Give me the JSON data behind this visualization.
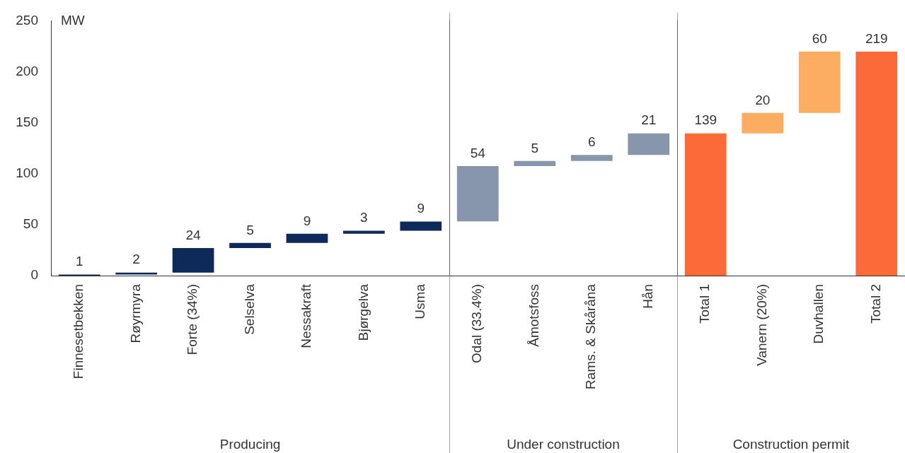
{
  "chart_data": [
    {
      "type": "bar",
      "ylabel": "MW",
      "xlabel": "Producing",
      "categories": [
        "Finnesetbekken",
        "Røyrmyra",
        "Forte (34%)",
        "Selselva",
        "Nessakraft",
        "Bjørgelva",
        "Usma"
      ],
      "values": [
        1,
        2,
        24,
        5,
        9,
        3,
        9
      ],
      "base": [
        0,
        1,
        3,
        27,
        32,
        41,
        44
      ],
      "colors": [
        "#0e2a5a",
        "#0e2a5a",
        "#0e2a5a",
        "#0e2a5a",
        "#0e2a5a",
        "#0e2a5a",
        "#0e2a5a"
      ],
      "ylim": [
        0,
        250
      ],
      "yticks": [
        0,
        50,
        100,
        150,
        200,
        250
      ],
      "data_labels": true
    },
    {
      "type": "bar",
      "xlabel": "Under construction",
      "categories": [
        "Odal (33.4%)",
        "Åmotsfoss",
        "Rams. & Skåråna",
        "Hån"
      ],
      "values": [
        54,
        5,
        6,
        21
      ],
      "base": [
        53,
        107,
        112,
        118
      ],
      "colors": [
        "#8796ad",
        "#8796ad",
        "#8796ad",
        "#8796ad"
      ],
      "ylim": [
        0,
        250
      ],
      "yticks": [
        0,
        50,
        100,
        150,
        200,
        250
      ],
      "tick_labels": "x",
      "data_labels": true
    },
    {
      "type": "bar",
      "xlabel": "Construction permit",
      "categories": [
        "Total 1",
        "Vanern (20%)",
        "Duvhallen",
        "Total 2"
      ],
      "values": [
        139,
        20,
        60,
        219
      ],
      "base": [
        0,
        139,
        159,
        0
      ],
      "colors": [
        "#fd6a39",
        "#fdad62",
        "#fdad62",
        "#fd6a39"
      ],
      "ylim": [
        0,
        250
      ],
      "yticks": [
        0,
        50,
        100,
        150,
        200,
        250
      ],
      "tick_labels": "x",
      "data_labels": true
    }
  ]
}
